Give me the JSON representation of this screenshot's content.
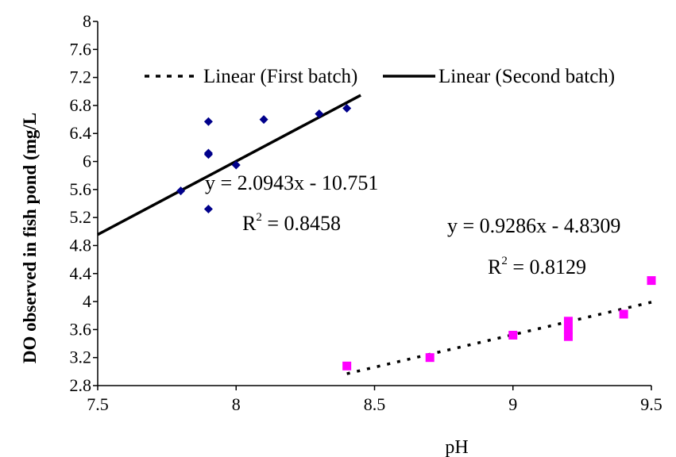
{
  "chart_data": {
    "type": "scatter",
    "xlabel": "pH",
    "ylabel": "DO observed in fish pond (mg/L",
    "xlim": [
      7.5,
      9.5
    ],
    "ylim": [
      2.8,
      8
    ],
    "xticks": [
      "7.5",
      "8",
      "8.5",
      "9",
      "9.5"
    ],
    "yticks": [
      "2.8",
      "3.2",
      "3.6",
      "4",
      "4.4",
      "4.8",
      "5.2",
      "5.6",
      "6",
      "6.4",
      "6.8",
      "7.2",
      "7.6",
      "8"
    ],
    "grid": false,
    "legend_placement": "top",
    "series": [
      {
        "name": "First batch",
        "marker": "square",
        "color": "#ff00ff",
        "points": [
          [
            8.4,
            3.08
          ],
          [
            8.7,
            3.2
          ],
          [
            9.0,
            3.52
          ],
          [
            9.2,
            3.5
          ],
          [
            9.2,
            3.6
          ],
          [
            9.2,
            3.72
          ],
          [
            9.4,
            3.82
          ],
          [
            9.5,
            4.3
          ]
        ]
      },
      {
        "name": "Second batch",
        "marker": "diamond",
        "color": "#00008b",
        "points": [
          [
            7.8,
            5.58
          ],
          [
            7.9,
            5.32
          ],
          [
            7.9,
            6.1
          ],
          [
            7.9,
            6.12
          ],
          [
            7.9,
            6.57
          ],
          [
            8.0,
            5.95
          ],
          [
            8.1,
            6.6
          ],
          [
            8.3,
            6.68
          ],
          [
            8.4,
            6.76
          ]
        ]
      }
    ],
    "trendlines": [
      {
        "legend": "Linear (First batch)",
        "style": "dotted",
        "slope": 0.9286,
        "intercept": -4.8309,
        "x_range": [
          8.4,
          9.5
        ],
        "equation": "y = 0.9286x - 4.8309",
        "r2_label": "R",
        "r2_value": " = 0.8129"
      },
      {
        "legend": "Linear (Second batch)",
        "style": "solid",
        "slope": 2.0943,
        "intercept": -10.751,
        "x_range": [
          7.5,
          8.45
        ],
        "equation": "y = 2.0943x - 10.751",
        "r2_label": "R",
        "r2_value": " = 0.8458"
      }
    ]
  }
}
